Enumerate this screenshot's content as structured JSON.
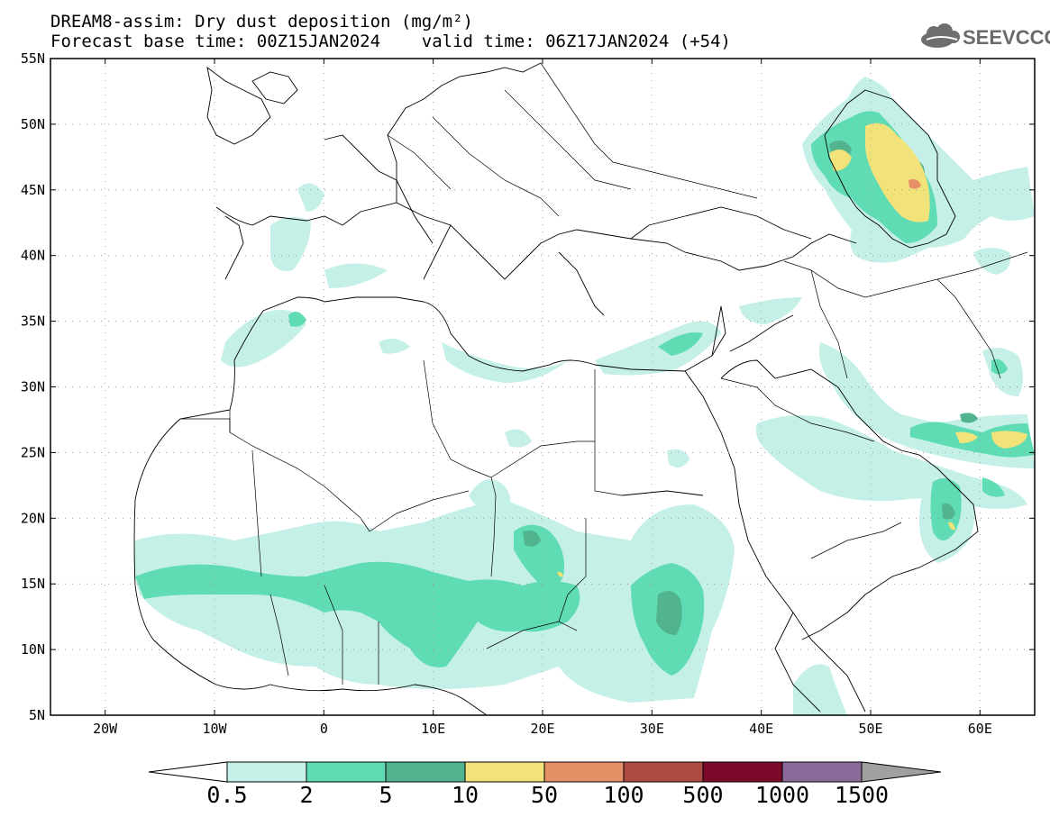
{
  "header": {
    "title_line1": "DREAM8-assim: Dry dust deposition (mg/m²)",
    "title_line2": "Forecast base time: 00Z15JAN2024    valid time: 06Z17JAN2024 (+54)",
    "logo_text": "SEEVCCC",
    "logo_icon": "cloud-icon"
  },
  "map": {
    "lon_range": [
      -25,
      65
    ],
    "lat_range": [
      5,
      55
    ],
    "lon_ticks": [
      {
        "value": -20,
        "label": "20W"
      },
      {
        "value": -10,
        "label": "10W"
      },
      {
        "value": 0,
        "label": "0"
      },
      {
        "value": 10,
        "label": "10E"
      },
      {
        "value": 20,
        "label": "20E"
      },
      {
        "value": 30,
        "label": "30E"
      },
      {
        "value": 40,
        "label": "40E"
      },
      {
        "value": 50,
        "label": "50E"
      },
      {
        "value": 60,
        "label": "60E"
      }
    ],
    "lat_ticks": [
      {
        "value": 5,
        "label": "5N"
      },
      {
        "value": 10,
        "label": "10N"
      },
      {
        "value": 15,
        "label": "15N"
      },
      {
        "value": 20,
        "label": "20N"
      },
      {
        "value": 25,
        "label": "25N"
      },
      {
        "value": 30,
        "label": "30N"
      },
      {
        "value": 35,
        "label": "35N"
      },
      {
        "value": 40,
        "label": "40N"
      },
      {
        "value": 45,
        "label": "45N"
      },
      {
        "value": 50,
        "label": "50N"
      },
      {
        "value": 55,
        "label": "55N"
      }
    ],
    "grid_lines": "dotted"
  },
  "colorbar": {
    "colors": [
      "#c4f0e8",
      "#5fdcb4",
      "#52b48e",
      "#f2e27a",
      "#e69068",
      "#ac4b42",
      "#7c0a2a",
      "#8c6a9a"
    ],
    "labels": [
      "0.5",
      "2",
      "5",
      "10",
      "50",
      "100",
      "500",
      "1000",
      "1500"
    ],
    "arrow_colors": [
      "#ffffff",
      "#a0a0a0"
    ]
  }
}
